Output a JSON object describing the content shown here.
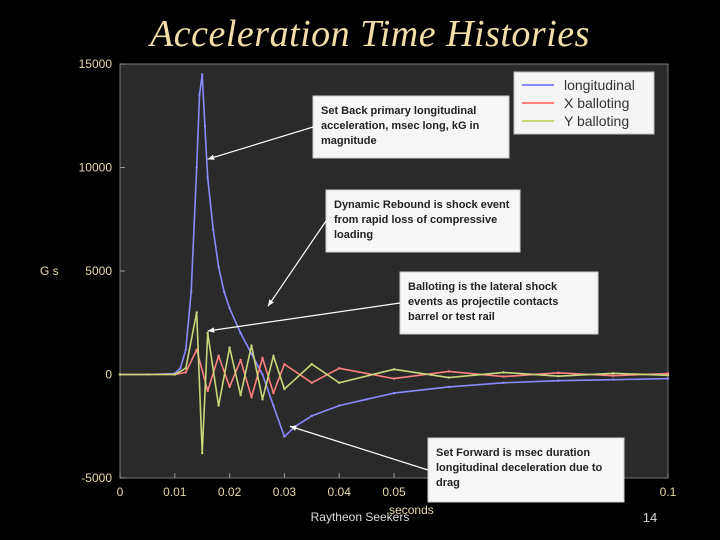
{
  "slide": {
    "title": "Acceleration Time Histories",
    "footer_source": "Raytheon Seekers",
    "page_number": "14"
  },
  "chart_data": {
    "type": "line",
    "xlabel": "seconds",
    "ylabel": "G s",
    "xlim": [
      0,
      0.1
    ],
    "ylim": [
      -5000,
      15000
    ],
    "x_ticks": [
      "0",
      "0.01",
      "0.02",
      "0.03",
      "0.04",
      "0.05",
      "0.1"
    ],
    "y_ticks": [
      "15000",
      "10000",
      "5000",
      "0",
      "-5000"
    ],
    "background_color": "#2a2a2a",
    "grid": false,
    "legend_position": "top-right",
    "series": [
      {
        "name": "longitudinal",
        "color": "#8a8aff",
        "x": [
          0,
          0.005,
          0.01,
          0.011,
          0.012,
          0.013,
          0.014,
          0.0145,
          0.015,
          0.0155,
          0.016,
          0.017,
          0.018,
          0.019,
          0.02,
          0.022,
          0.024,
          0.026,
          0.028,
          0.03,
          0.032,
          0.035,
          0.04,
          0.045,
          0.05,
          0.06,
          0.07,
          0.08,
          0.09,
          0.1
        ],
        "y": [
          0,
          0,
          50,
          300,
          1200,
          4000,
          10000,
          13500,
          14500,
          12000,
          9500,
          7000,
          5200,
          4000,
          3200,
          2000,
          1000,
          0,
          -1500,
          -3000,
          -2500,
          -2000,
          -1500,
          -1200,
          -900,
          -600,
          -400,
          -300,
          -250,
          -200
        ]
      },
      {
        "name": "X balloting",
        "color": "#ff8080",
        "x": [
          0,
          0.01,
          0.012,
          0.014,
          0.016,
          0.018,
          0.02,
          0.022,
          0.024,
          0.026,
          0.028,
          0.03,
          0.035,
          0.04,
          0.05,
          0.06,
          0.07,
          0.08,
          0.09,
          0.1
        ],
        "y": [
          0,
          0,
          100,
          1200,
          -800,
          900,
          -600,
          700,
          -1100,
          800,
          -900,
          500,
          -400,
          300,
          -200,
          150,
          -100,
          80,
          -60,
          50
        ]
      },
      {
        "name": "Y  balloting",
        "color": "#c8d878",
        "x": [
          0,
          0.01,
          0.012,
          0.014,
          0.015,
          0.016,
          0.018,
          0.02,
          0.022,
          0.024,
          0.026,
          0.028,
          0.03,
          0.035,
          0.04,
          0.05,
          0.06,
          0.07,
          0.08,
          0.09,
          0.1
        ],
        "y": [
          0,
          0,
          300,
          3000,
          -3800,
          2000,
          -1500,
          1300,
          -1000,
          1400,
          -1200,
          900,
          -700,
          500,
          -400,
          250,
          -150,
          100,
          -80,
          60,
          -40
        ]
      }
    ],
    "annotations": [
      {
        "id": "set-back",
        "lines": [
          "Set Back primary longitudinal",
          "acceleration, msec long, kG in",
          "magnitude"
        ],
        "target": [
          0.016,
          10400
        ]
      },
      {
        "id": "dynamic-rebound",
        "lines": [
          "Dynamic Rebound is shock event",
          "from rapid loss of compressive",
          "loading"
        ],
        "target": [
          0.027,
          3300
        ]
      },
      {
        "id": "balloting",
        "lines": [
          "Balloting is the lateral shock",
          "events as projectile contacts",
          "barrel or test rail"
        ],
        "target": [
          0.016,
          2100
        ]
      },
      {
        "id": "set-forward",
        "lines": [
          "Set Forward is msec duration",
          "longitudinal deceleration due to",
          "drag"
        ],
        "target": [
          0.031,
          -2500
        ]
      }
    ]
  }
}
